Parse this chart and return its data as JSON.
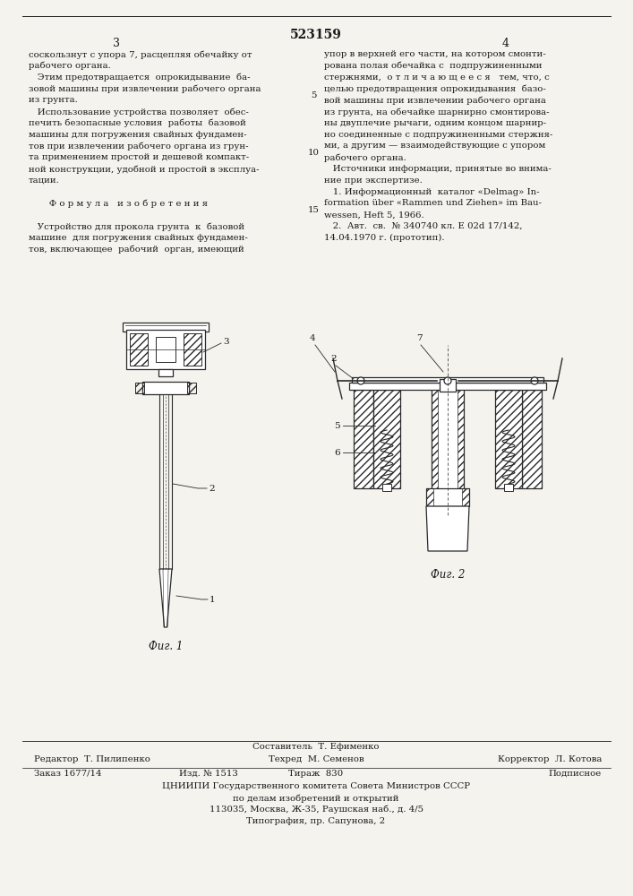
{
  "bg_color": "#f5f3ee",
  "text_color": "#1a1a1a",
  "patent_number": "523159",
  "page_left": "3",
  "page_right": "4",
  "col1_text": [
    "соскользнут с упора 7, расцепляя обечайку от",
    "рабочего органа.",
    "   Этим предотвращается  опрокидывание  ба-",
    "зовой машины при извлечении рабочего органа",
    "из грунта.",
    "   Использование устройства позволяет  обес-",
    "печить безопасные условия  работы  базовой",
    "машины для погружения свайных фундамен-",
    "тов при извлечении рабочего органа из грун-",
    "та применением простой и дешевой компакт-",
    "ной конструкции, удобной и простой в эксплуа-",
    "тации.",
    "",
    "       Ф о р м у л а   и з о б р е т е н и я",
    "",
    "   Устройство для прокола грунта  к  базовой",
    "машине  для погружения свайных фундамен-",
    "тов, включающее  рабочий  орган, имеющий"
  ],
  "col2_text": [
    "упор в верхней его части, на котором смонти-",
    "рована полая обечайка с  подпружиненными",
    "стержнями,  о т л и ч а ю щ е е с я   тем, что, с",
    "целью предотвращения опрокидывания  базо-",
    "вой машины при извлечении рабочего органа",
    "из грунта, на обечайке шарнирно смонтирова-",
    "ны двуплечие рычаги, одним концом шарнир-",
    "но соединенные с подпружиненными стержня-",
    "ми, а другим — взаимодействующие с упором",
    "рабочего органа.",
    "   Источники информации, принятые во внима-",
    "ние при экспертизе.",
    "   1. Информационный  каталог «Delmag» In-",
    "formation über «Rammen und Ziehen» im Bau-",
    "wessen, Heft 5, 1966.",
    "   2.  Авт.  св.  № 340740 кл. Е 02d 17/142,",
    "14.04.1970 г. (прототип)."
  ],
  "line_num_rows": {
    "4": "5",
    "9": "10",
    "14": "15"
  },
  "fig1_caption": "Фиг. 1",
  "fig2_caption": "Фиг. 2",
  "footer_composer": "Составитель  Т. Ефименко",
  "footer_editor": "Редактор  Т. Пилипенко",
  "footer_tech": "Техред  М. Семенов",
  "footer_corrector": "Корректор  Л. Котова",
  "footer_order": "Заказ 1677/14",
  "footer_izd": "Изд. № 1513",
  "footer_tirazh": "Тираж  830",
  "footer_podpisnoe": "Подписное",
  "footer_tsnipi": "ЦНИИПИ Государственного комитета Совета Министров СССР",
  "footer_addr1": "по делам изобретений и открытий",
  "footer_addr2": "113035, Москва, Ж-35, Раушская наб., д. 4/5",
  "footer_tipografia": "Типография, пр. Сапунова, 2"
}
